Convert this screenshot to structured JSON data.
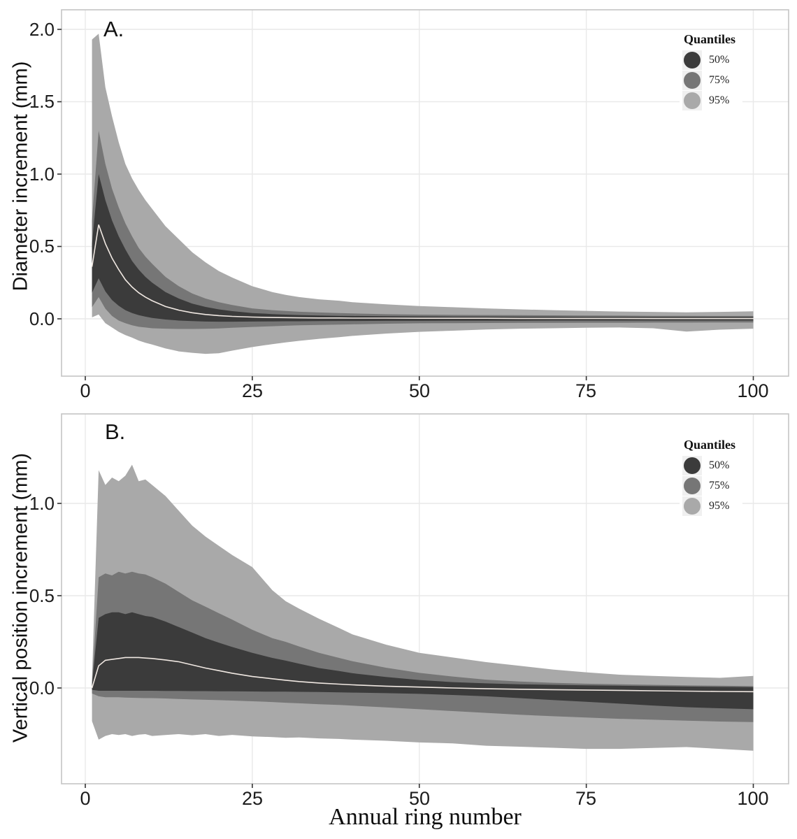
{
  "figure": {
    "x_title": "Annual ring number"
  },
  "colors": {
    "band_50": "#3b3b3b",
    "band_75": "#767676",
    "band_95": "#a9a9a9",
    "median_line": "#f0e8e2",
    "grid": "#e9e9e9",
    "panel_border": "#c4c4c4",
    "legend_key_bg": "#f0f0f0",
    "text": "#1c1c1c"
  },
  "chart_data": [
    {
      "type": "area",
      "panel_id": "A",
      "panel_label": "A.",
      "ylabel": "Diameter increment (mm)",
      "xlabel": "Annual ring number",
      "x_tick_labels": [
        "0",
        "25",
        "50",
        "75",
        "100"
      ],
      "x_tick_values": [
        0,
        25,
        50,
        75,
        100
      ],
      "y_tick_labels": [
        "2.0",
        "1.5",
        "1.0",
        "0.5",
        "0.0"
      ],
      "y_tick_values": [
        2.0,
        1.5,
        1.0,
        0.5,
        0.0
      ],
      "xlim": [
        -3.6,
        105.3
      ],
      "ylim": [
        -0.4,
        2.135
      ],
      "grid": true,
      "legend_position": "top-right",
      "legend": {
        "title": "Quantiles",
        "items": [
          "50%",
          "75%",
          "95%"
        ]
      },
      "x": [
        1,
        2,
        3,
        4,
        5,
        6,
        7,
        8,
        9,
        10,
        12,
        14,
        16,
        18,
        20,
        22,
        25,
        28,
        30,
        32,
        35,
        38,
        40,
        45,
        50,
        55,
        60,
        65,
        70,
        75,
        80,
        85,
        90,
        95,
        100
      ],
      "series": [
        {
          "name": "95% quantile band",
          "color": "#a9a9a9",
          "hi": [
            1.93,
            1.97,
            1.6,
            1.4,
            1.22,
            1.07,
            0.97,
            0.89,
            0.82,
            0.76,
            0.64,
            0.55,
            0.46,
            0.39,
            0.33,
            0.285,
            0.225,
            0.185,
            0.165,
            0.15,
            0.135,
            0.125,
            0.115,
            0.1,
            0.088,
            0.08,
            0.072,
            0.065,
            0.06,
            0.055,
            0.05,
            0.048,
            0.045,
            0.048,
            0.052
          ],
          "lo": [
            0.01,
            0.03,
            -0.03,
            -0.06,
            -0.09,
            -0.112,
            -0.13,
            -0.15,
            -0.165,
            -0.178,
            -0.205,
            -0.225,
            -0.235,
            -0.242,
            -0.238,
            -0.22,
            -0.195,
            -0.175,
            -0.163,
            -0.152,
            -0.138,
            -0.127,
            -0.118,
            -0.102,
            -0.09,
            -0.082,
            -0.074,
            -0.068,
            -0.065,
            -0.062,
            -0.06,
            -0.065,
            -0.088,
            -0.075,
            -0.068
          ]
        },
        {
          "name": "75% quantile band",
          "color": "#767676",
          "hi": [
            0.68,
            1.3,
            1.07,
            0.9,
            0.77,
            0.66,
            0.57,
            0.49,
            0.43,
            0.38,
            0.29,
            0.225,
            0.175,
            0.14,
            0.115,
            0.095,
            0.072,
            0.06,
            0.054,
            0.049,
            0.044,
            0.04,
            0.037,
            0.032,
            0.029,
            0.027,
            0.026,
            0.025,
            0.024,
            0.023,
            0.022,
            0.021,
            0.021,
            0.02,
            0.02
          ],
          "lo": [
            0.08,
            0.15,
            0.07,
            0.02,
            -0.012,
            -0.03,
            -0.045,
            -0.055,
            -0.06,
            -0.065,
            -0.068,
            -0.07,
            -0.07,
            -0.069,
            -0.066,
            -0.062,
            -0.056,
            -0.051,
            -0.048,
            -0.045,
            -0.042,
            -0.04,
            -0.038,
            -0.034,
            -0.031,
            -0.03,
            -0.029,
            -0.028,
            -0.028,
            -0.027,
            -0.027,
            -0.026,
            -0.026,
            -0.025,
            -0.025
          ]
        },
        {
          "name": "50% quantile band",
          "color": "#3b3b3b",
          "hi": [
            0.52,
            1.0,
            0.82,
            0.68,
            0.57,
            0.48,
            0.4,
            0.34,
            0.29,
            0.25,
            0.185,
            0.14,
            0.105,
            0.082,
            0.065,
            0.053,
            0.04,
            0.033,
            0.029,
            0.026,
            0.023,
            0.021,
            0.02,
            0.018,
            0.017,
            0.016,
            0.016,
            0.015,
            0.015,
            0.014,
            0.014,
            0.013,
            0.013,
            0.013,
            0.013
          ],
          "lo": [
            0.18,
            0.28,
            0.19,
            0.13,
            0.09,
            0.06,
            0.04,
            0.025,
            0.015,
            0.006,
            -0.005,
            -0.012,
            -0.016,
            -0.019,
            -0.02,
            -0.02,
            -0.019,
            -0.018,
            -0.017,
            -0.017,
            -0.016,
            -0.015,
            -0.015,
            -0.014,
            -0.014,
            -0.013,
            -0.013,
            -0.013,
            -0.012,
            -0.012,
            -0.012,
            -0.012,
            -0.012,
            -0.012,
            -0.012
          ]
        },
        {
          "name": "median",
          "color": "#f0e8e2",
          "values": [
            0.36,
            0.65,
            0.52,
            0.42,
            0.34,
            0.27,
            0.22,
            0.18,
            0.15,
            0.125,
            0.085,
            0.06,
            0.042,
            0.03,
            0.022,
            0.017,
            0.012,
            0.009,
            0.008,
            0.007,
            0.006,
            0.006,
            0.005,
            0.005,
            0.004,
            0.004,
            0.004,
            0.003,
            0.003,
            0.003,
            0.003,
            0.002,
            0.002,
            0.002,
            0.002
          ]
        }
      ]
    },
    {
      "type": "area",
      "panel_id": "B",
      "panel_label": "B.",
      "ylabel": "Vertical position increment (mm)",
      "xlabel": "Annual ring number",
      "x_tick_labels": [
        "0",
        "25",
        "50",
        "75",
        "100"
      ],
      "x_tick_values": [
        0,
        25,
        50,
        75,
        100
      ],
      "y_tick_labels": [
        "1.0",
        "0.5",
        "0.0"
      ],
      "y_tick_values": [
        1.0,
        0.5,
        0.0
      ],
      "xlim": [
        -3.6,
        105.3
      ],
      "ylim": [
        -0.519,
        1.485
      ],
      "grid": true,
      "legend_position": "top-right",
      "legend": {
        "title": "Quantiles",
        "items": [
          "50%",
          "75%",
          "95%"
        ]
      },
      "x": [
        1,
        2,
        3,
        4,
        5,
        6,
        7,
        8,
        9,
        10,
        12,
        14,
        16,
        18,
        20,
        22,
        25,
        28,
        30,
        32,
        35,
        38,
        40,
        45,
        50,
        55,
        60,
        65,
        70,
        75,
        80,
        85,
        90,
        95,
        100
      ],
      "series": [
        {
          "name": "95% quantile band",
          "color": "#a9a9a9",
          "hi": [
            0.05,
            1.18,
            1.1,
            1.14,
            1.12,
            1.15,
            1.21,
            1.12,
            1.13,
            1.1,
            1.04,
            0.96,
            0.88,
            0.82,
            0.77,
            0.72,
            0.655,
            0.53,
            0.47,
            0.43,
            0.375,
            0.325,
            0.29,
            0.235,
            0.19,
            0.165,
            0.14,
            0.12,
            0.1,
            0.085,
            0.072,
            0.065,
            0.06,
            0.055,
            0.065
          ],
          "lo": [
            -0.18,
            -0.28,
            -0.26,
            -0.25,
            -0.255,
            -0.25,
            -0.26,
            -0.253,
            -0.25,
            -0.26,
            -0.255,
            -0.25,
            -0.256,
            -0.25,
            -0.26,
            -0.254,
            -0.262,
            -0.266,
            -0.27,
            -0.268,
            -0.273,
            -0.276,
            -0.28,
            -0.286,
            -0.295,
            -0.3,
            -0.313,
            -0.318,
            -0.324,
            -0.33,
            -0.33,
            -0.325,
            -0.32,
            -0.33,
            -0.34
          ]
        },
        {
          "name": "75% quantile band",
          "color": "#767676",
          "hi": [
            0.03,
            0.6,
            0.62,
            0.61,
            0.63,
            0.62,
            0.63,
            0.62,
            0.615,
            0.6,
            0.565,
            0.52,
            0.475,
            0.44,
            0.405,
            0.37,
            0.315,
            0.27,
            0.25,
            0.225,
            0.19,
            0.163,
            0.145,
            0.11,
            0.082,
            0.062,
            0.045,
            0.035,
            0.028,
            0.023,
            0.02,
            0.017,
            0.014,
            0.012,
            0.01
          ],
          "lo": [
            -0.03,
            -0.045,
            -0.05,
            -0.05,
            -0.05,
            -0.052,
            -0.053,
            -0.054,
            -0.055,
            -0.055,
            -0.057,
            -0.06,
            -0.062,
            -0.064,
            -0.066,
            -0.068,
            -0.072,
            -0.076,
            -0.08,
            -0.083,
            -0.088,
            -0.092,
            -0.096,
            -0.105,
            -0.115,
            -0.125,
            -0.135,
            -0.145,
            -0.153,
            -0.16,
            -0.167,
            -0.172,
            -0.177,
            -0.182,
            -0.185
          ]
        },
        {
          "name": "50% quantile band",
          "color": "#3b3b3b",
          "hi": [
            0.02,
            0.38,
            0.4,
            0.41,
            0.41,
            0.4,
            0.41,
            0.4,
            0.39,
            0.385,
            0.36,
            0.33,
            0.3,
            0.27,
            0.245,
            0.222,
            0.19,
            0.163,
            0.148,
            0.132,
            0.108,
            0.092,
            0.08,
            0.06,
            0.043,
            0.032,
            0.025,
            0.02,
            0.017,
            0.014,
            0.012,
            0.01,
            0.008,
            0.006,
            0.005
          ],
          "lo": [
            -0.01,
            -0.015,
            -0.015,
            -0.015,
            -0.015,
            -0.015,
            -0.015,
            -0.015,
            -0.015,
            -0.015,
            -0.016,
            -0.016,
            -0.017,
            -0.017,
            -0.018,
            -0.018,
            -0.019,
            -0.02,
            -0.02,
            -0.021,
            -0.022,
            -0.024,
            -0.025,
            -0.028,
            -0.032,
            -0.038,
            -0.045,
            -0.055,
            -0.065,
            -0.075,
            -0.085,
            -0.095,
            -0.104,
            -0.11,
            -0.115
          ]
        },
        {
          "name": "median",
          "color": "#f0e8e2",
          "values": [
            0.0,
            0.12,
            0.15,
            0.155,
            0.16,
            0.165,
            0.165,
            0.165,
            0.162,
            0.16,
            0.152,
            0.142,
            0.125,
            0.108,
            0.094,
            0.08,
            0.062,
            0.05,
            0.042,
            0.035,
            0.027,
            0.021,
            0.017,
            0.01,
            0.005,
            0.0,
            -0.004,
            -0.007,
            -0.009,
            -0.011,
            -0.013,
            -0.015,
            -0.017,
            -0.019,
            -0.02
          ]
        }
      ]
    }
  ]
}
